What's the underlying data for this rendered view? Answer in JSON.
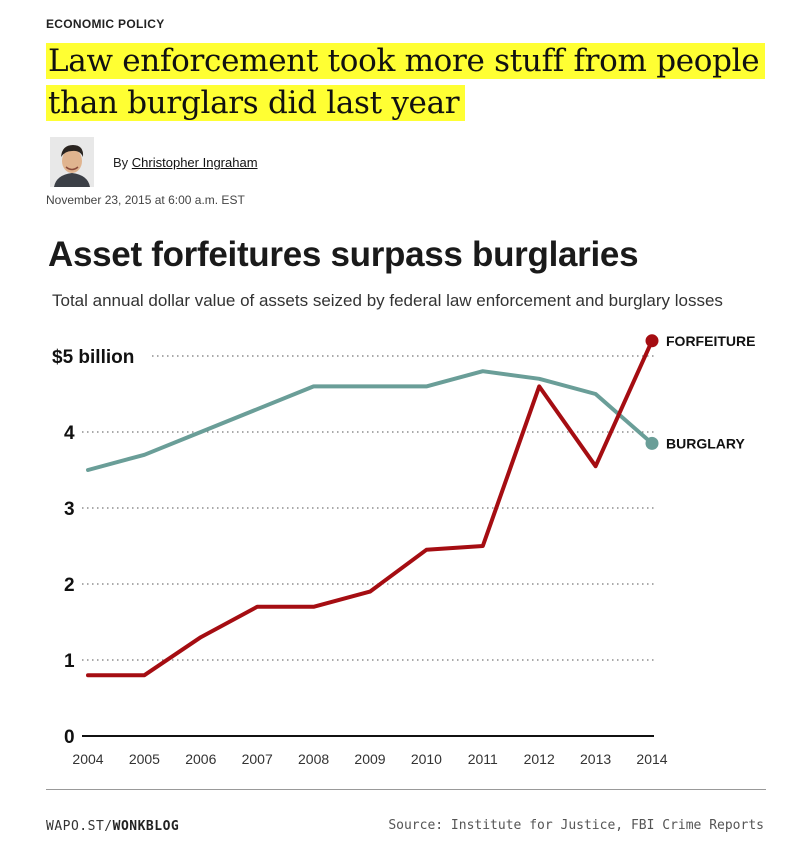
{
  "article": {
    "kicker": "ECONOMIC POLICY",
    "headline_line1": "Law enforcement took more stuff from people",
    "headline_line2": "than burglars did last year",
    "byline_prefix": "By",
    "author": "Christopher Ingraham",
    "date": "November 23, 2015 at 6:00 a.m. EST"
  },
  "colors": {
    "highlight": "#ffff33",
    "forfeiture": "#a50d12",
    "burglary": "#6a9e98"
  },
  "chart_data": {
    "type": "line",
    "title": "Asset forfeitures surpass burglaries",
    "subtitle": "Total annual dollar value of assets seized by federal law enforcement and burglary losses",
    "x": [
      2004,
      2005,
      2006,
      2007,
      2008,
      2009,
      2010,
      2011,
      2012,
      2013,
      2014
    ],
    "x_tick_labels": [
      "2004",
      "2005",
      "2006",
      "2007",
      "2008",
      "2009",
      "2010",
      "2011",
      "2012",
      "2013",
      "2014"
    ],
    "y_tick_labels": [
      "0",
      "1",
      "2",
      "3",
      "4",
      "$5 billion"
    ],
    "y_ticks": [
      0,
      1,
      2,
      3,
      4,
      5
    ],
    "ylim": [
      0,
      5.3
    ],
    "grid": true,
    "series": [
      {
        "name": "FORFEITURE",
        "color": "#a50d12",
        "values": [
          0.8,
          0.8,
          1.3,
          1.7,
          1.7,
          1.9,
          2.45,
          2.5,
          4.6,
          3.55,
          5.2
        ]
      },
      {
        "name": "BURGLARY",
        "color": "#6a9e98",
        "values": [
          3.5,
          3.7,
          4.0,
          4.3,
          4.6,
          4.6,
          4.6,
          4.8,
          4.7,
          4.5,
          3.85
        ]
      }
    ]
  },
  "footer": {
    "brand_prefix": "WAPO.ST/",
    "brand": "WONKBLOG",
    "source": "Source: Institute for Justice, FBI Crime Reports"
  }
}
